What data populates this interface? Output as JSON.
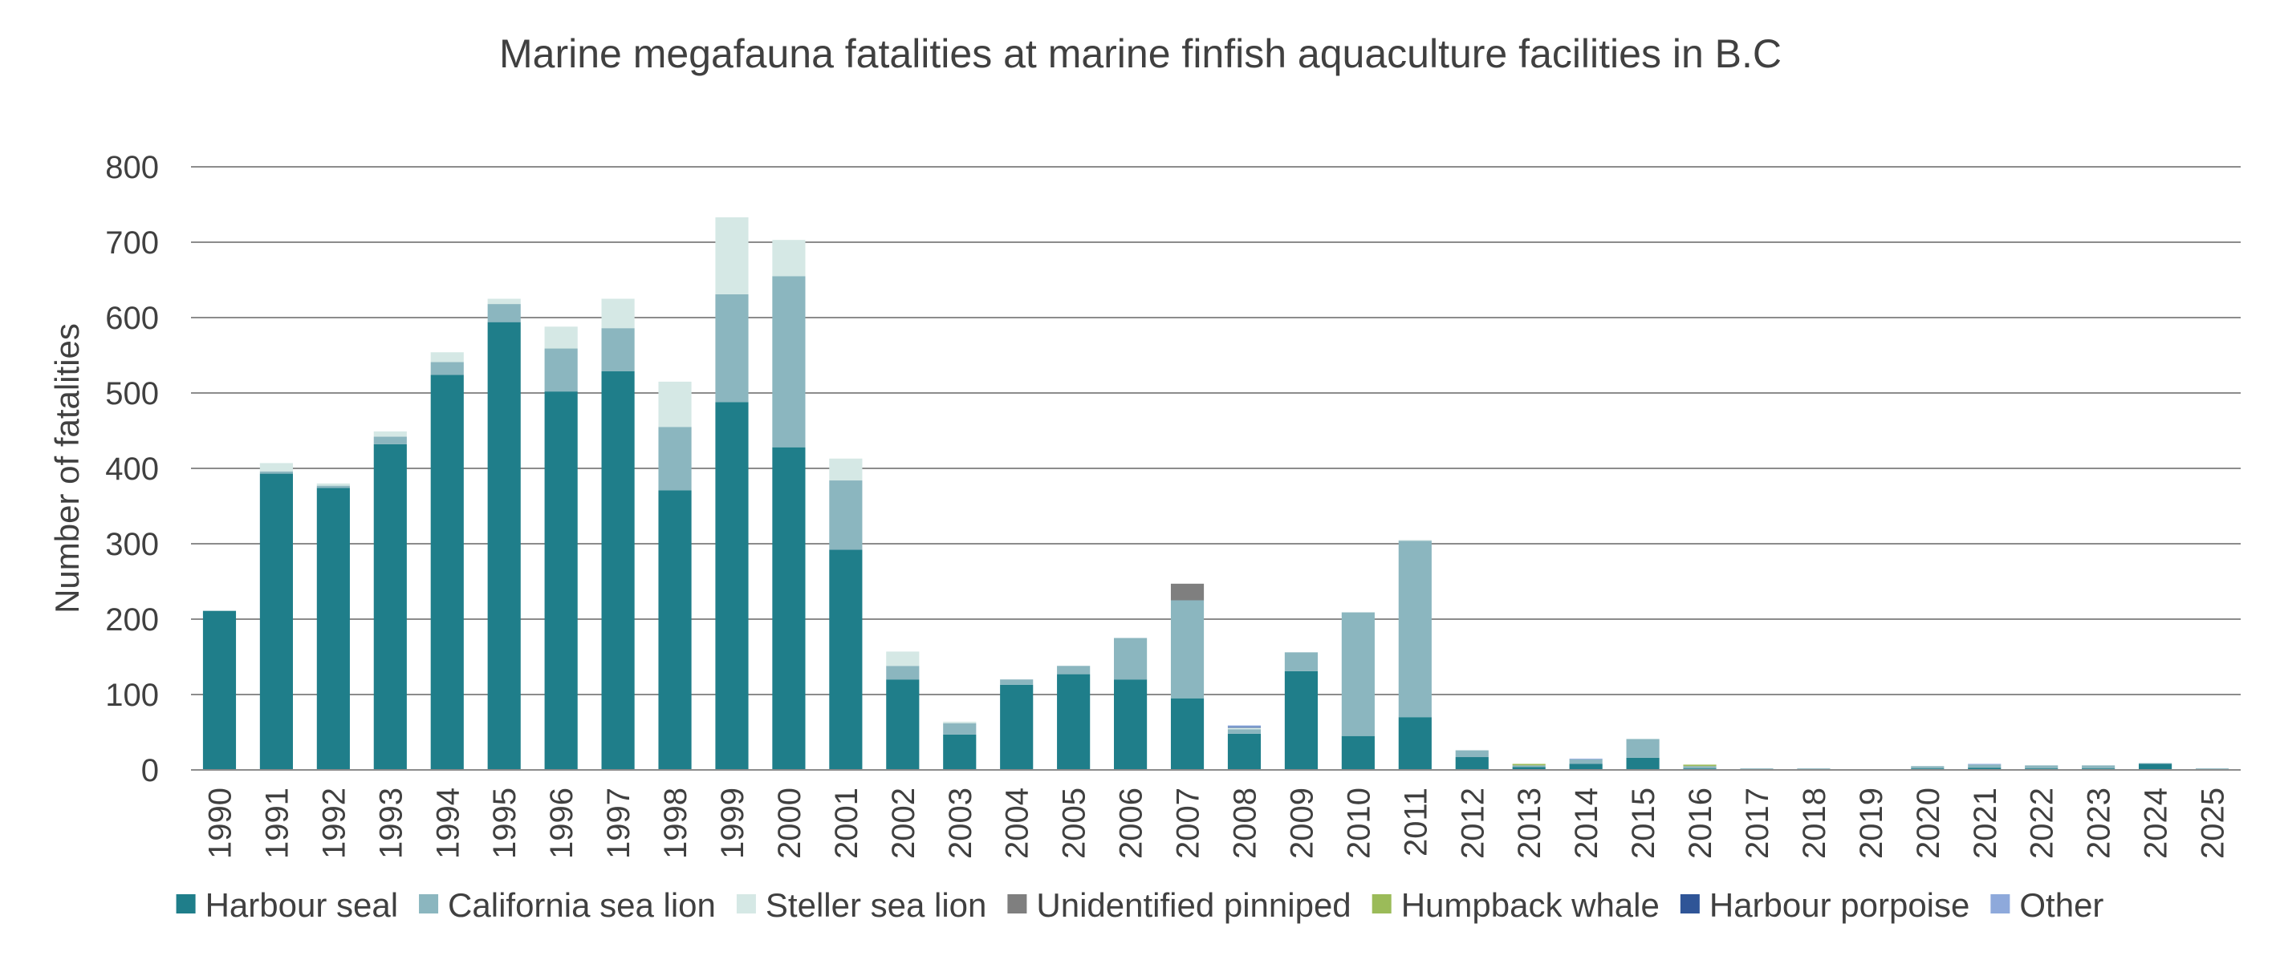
{
  "chart_data": {
    "type": "bar",
    "stacked": true,
    "title": "Marine megafauna fatalities at marine finfish aquaculture facilities in B.C",
    "xlabel": "",
    "ylabel": "Number of fatalities",
    "ylim": [
      0,
      800
    ],
    "yticks": [
      0,
      100,
      200,
      300,
      400,
      500,
      600,
      700,
      800
    ],
    "grid": true,
    "legend_position": "bottom",
    "categories": [
      "1990",
      "1991",
      "1992",
      "1993",
      "1994",
      "1995",
      "1996",
      "1997",
      "1998",
      "1999",
      "2000",
      "2001",
      "2002",
      "2003",
      "2004",
      "2005",
      "2006",
      "2007",
      "2008",
      "2009",
      "2010",
      "2011",
      "2012",
      "2013",
      "2014",
      "2015",
      "2016",
      "2017",
      "2018",
      "2019",
      "2020",
      "2021",
      "2022",
      "2023",
      "2024",
      "2025"
    ],
    "series": [
      {
        "name": "Harbour seal",
        "color": "#1f7e8a",
        "values": [
          211,
          393,
          374,
          432,
          524,
          594,
          502,
          529,
          371,
          488,
          428,
          292,
          120,
          47,
          113,
          127,
          120,
          95,
          48,
          131,
          45,
          70,
          17,
          4,
          8,
          16,
          2,
          1,
          1,
          0,
          2,
          3,
          2,
          2,
          8,
          1
        ]
      },
      {
        "name": "California sea lion",
        "color": "#8bb6bf",
        "values": [
          0,
          3,
          3,
          10,
          17,
          24,
          57,
          57,
          84,
          143,
          227,
          92,
          18,
          15,
          7,
          11,
          55,
          130,
          6,
          25,
          164,
          234,
          9,
          2,
          6,
          25,
          3,
          1,
          1,
          0,
          3,
          4,
          4,
          4,
          1,
          1
        ]
      },
      {
        "name": "Steller sea lion",
        "color": "#d5e8e5",
        "values": [
          0,
          11,
          3,
          7,
          13,
          7,
          29,
          39,
          60,
          102,
          48,
          29,
          19,
          2,
          0,
          0,
          0,
          0,
          2,
          0,
          0,
          1,
          0,
          0,
          0,
          0,
          0,
          0,
          0,
          0,
          0,
          0,
          0,
          0,
          0,
          0
        ]
      },
      {
        "name": "Unidentified pinniped",
        "color": "#7f7f7f",
        "values": [
          0,
          0,
          0,
          0,
          0,
          0,
          0,
          0,
          0,
          0,
          0,
          0,
          0,
          0,
          0,
          0,
          0,
          22,
          0,
          0,
          0,
          0,
          0,
          0,
          0,
          0,
          0,
          0,
          0,
          0,
          0,
          0,
          0,
          0,
          0,
          0
        ]
      },
      {
        "name": "Humpback whale",
        "color": "#9bbb59",
        "values": [
          0,
          0,
          0,
          0,
          0,
          0,
          0,
          0,
          0,
          0,
          0,
          0,
          0,
          0,
          0,
          0,
          0,
          0,
          0,
          0,
          0,
          0,
          0,
          2,
          0,
          0,
          2,
          0,
          0,
          0,
          0,
          0,
          0,
          0,
          0,
          0
        ]
      },
      {
        "name": "Harbour porpoise",
        "color": "#2f5597",
        "values": [
          0,
          0,
          0,
          0,
          0,
          0,
          0,
          0,
          0,
          0,
          0,
          0,
          0,
          0,
          0,
          0,
          0,
          0,
          1,
          0,
          0,
          0,
          0,
          0,
          0,
          0,
          0,
          0,
          0,
          0,
          0,
          0,
          0,
          0,
          0,
          0
        ]
      },
      {
        "name": "Other",
        "color": "#8ea9db",
        "values": [
          0,
          0,
          0,
          0,
          0,
          0,
          0,
          0,
          0,
          0,
          0,
          0,
          0,
          0,
          0,
          0,
          0,
          0,
          2,
          0,
          0,
          0,
          0,
          0,
          1,
          0,
          0,
          0,
          0,
          0,
          0,
          1,
          0,
          0,
          0,
          0
        ]
      }
    ]
  }
}
